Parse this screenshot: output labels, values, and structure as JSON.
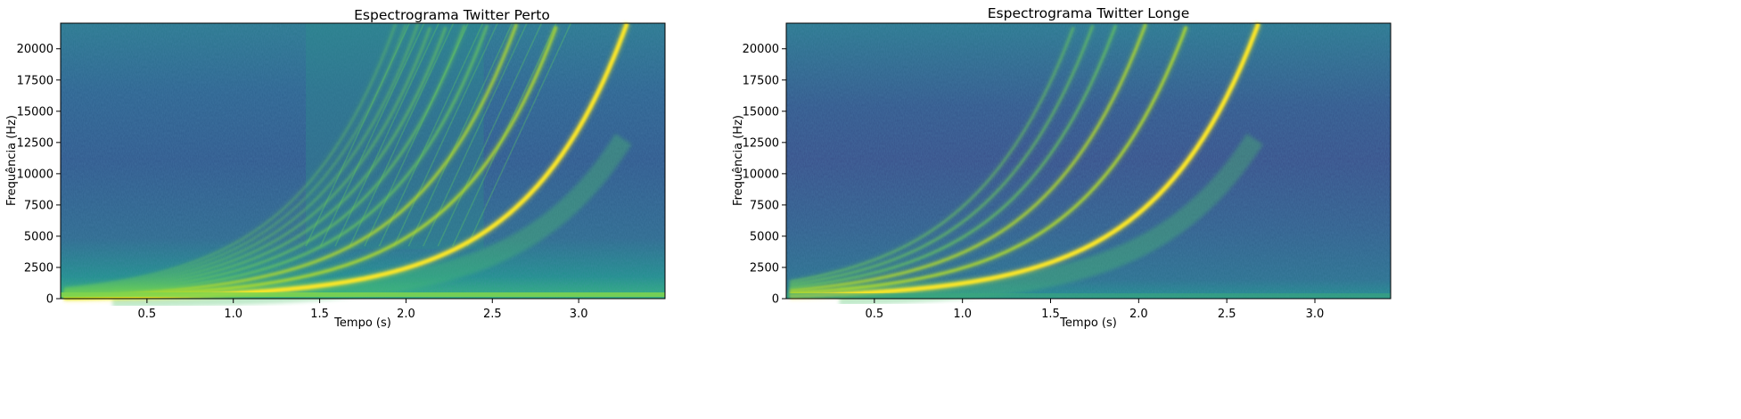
{
  "chart_data": [
    {
      "type": "heatmap",
      "title": "Espectrograma Twitter Perto",
      "xlabel": "Tempo (s)",
      "ylabel": "Frequência (Hz)",
      "xlim": [
        0.0,
        3.5
      ],
      "ylim": [
        0,
        22050
      ],
      "x_ticks": [
        0.5,
        1.0,
        1.5,
        2.0,
        2.5,
        3.0
      ],
      "x_tick_labels": [
        "0.5",
        "1.0",
        "1.5",
        "2.0",
        "2.5",
        "3.0"
      ],
      "y_ticks": [
        0,
        2500,
        5000,
        7500,
        10000,
        12500,
        15000,
        17500,
        20000
      ],
      "y_tick_labels": [
        "0",
        "2500",
        "5000",
        "7500",
        "10000",
        "12500",
        "15000",
        "17500",
        "20000"
      ],
      "colormap": "viridis",
      "chirps": {
        "t_end": 3.28,
        "f_end": 22050,
        "harmonic_ratios": [
          1,
          2,
          3,
          4,
          5,
          6,
          7,
          8,
          9,
          10
        ],
        "dense_start": 1.42,
        "dense_end": 2.45
      }
    },
    {
      "type": "heatmap",
      "title": "Espectrograma Twitter Longe",
      "xlabel": "Tempo (s)",
      "ylabel": "Frequência (Hz)",
      "xlim": [
        0.0,
        3.43
      ],
      "ylim": [
        0,
        22050
      ],
      "x_ticks": [
        0.5,
        1.0,
        1.5,
        2.0,
        2.5,
        3.0
      ],
      "x_tick_labels": [
        "0.5",
        "1.0",
        "1.5",
        "2.0",
        "2.5",
        "3.0"
      ],
      "y_ticks": [
        0,
        2500,
        5000,
        7500,
        10000,
        12500,
        15000,
        17500,
        20000
      ],
      "y_tick_labels": [
        "0",
        "2500",
        "5000",
        "7500",
        "10000",
        "12500",
        "15000",
        "17500",
        "20000"
      ],
      "colormap": "viridis",
      "chirps": {
        "t_end": 2.68,
        "f_end": 22050,
        "harmonic_ratios": [
          1,
          2,
          3,
          4,
          5,
          6
        ],
        "dense_start": null,
        "dense_end": 2.58
      }
    }
  ]
}
